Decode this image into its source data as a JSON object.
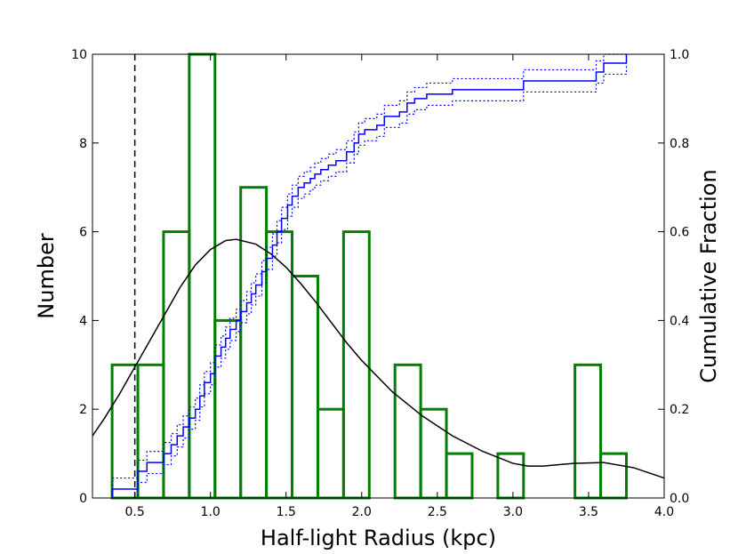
{
  "chart_data": {
    "type": "bar",
    "xlabel": "Half-light Radius (kpc)",
    "ylabel": "Number",
    "y2label": "Cumulative Fraction",
    "xlim": [
      0.22,
      4.0
    ],
    "ylim": [
      0,
      10
    ],
    "y2lim": [
      0.0,
      1.0
    ],
    "xticks": [
      "0.5",
      "1.0",
      "1.5",
      "2.0",
      "2.5",
      "3.0",
      "3.5",
      "4.0"
    ],
    "yticks": [
      "0",
      "2",
      "4",
      "6",
      "8",
      "10"
    ],
    "y2ticks": [
      "0.0",
      "0.2",
      "0.4",
      "0.6",
      "0.8",
      "1.0"
    ],
    "vline_x": 0.5,
    "histogram": {
      "bins": [
        {
          "x0": 0.35,
          "x1": 0.52,
          "count": 3
        },
        {
          "x0": 0.52,
          "x1": 0.69,
          "count": 3
        },
        {
          "x0": 0.69,
          "x1": 0.86,
          "count": 6
        },
        {
          "x0": 0.86,
          "x1": 1.03,
          "count": 10
        },
        {
          "x0": 1.03,
          "x1": 1.2,
          "count": 4
        },
        {
          "x0": 1.2,
          "x1": 1.37,
          "count": 7
        },
        {
          "x0": 1.37,
          "x1": 1.54,
          "count": 6
        },
        {
          "x0": 1.54,
          "x1": 1.71,
          "count": 5
        },
        {
          "x0": 1.71,
          "x1": 1.88,
          "count": 2
        },
        {
          "x0": 1.88,
          "x1": 2.05,
          "count": 6
        },
        {
          "x0": 2.05,
          "x1": 2.22,
          "count": 0
        },
        {
          "x0": 2.22,
          "x1": 2.39,
          "count": 3
        },
        {
          "x0": 2.39,
          "x1": 2.56,
          "count": 2
        },
        {
          "x0": 2.56,
          "x1": 2.73,
          "count": 1
        },
        {
          "x0": 2.73,
          "x1": 2.9,
          "count": 0
        },
        {
          "x0": 2.9,
          "x1": 3.07,
          "count": 1
        },
        {
          "x0": 3.07,
          "x1": 3.24,
          "count": 0
        },
        {
          "x0": 3.24,
          "x1": 3.41,
          "count": 0
        },
        {
          "x0": 3.41,
          "x1": 3.58,
          "count": 3
        },
        {
          "x0": 3.58,
          "x1": 3.75,
          "count": 1
        }
      ]
    },
    "cumulative": {
      "x": [
        0.35,
        0.52,
        0.58,
        0.69,
        0.74,
        0.78,
        0.82,
        0.86,
        0.9,
        0.93,
        0.96,
        1.0,
        1.03,
        1.07,
        1.1,
        1.13,
        1.17,
        1.2,
        1.24,
        1.27,
        1.3,
        1.34,
        1.37,
        1.41,
        1.44,
        1.47,
        1.51,
        1.54,
        1.58,
        1.62,
        1.66,
        1.69,
        1.73,
        1.78,
        1.83,
        1.9,
        1.95,
        1.98,
        2.02,
        2.1,
        2.15,
        2.25,
        2.3,
        2.35,
        2.43,
        2.6,
        3.07,
        3.55,
        3.6,
        3.75
      ],
      "y": [
        0.02,
        0.06,
        0.08,
        0.1,
        0.12,
        0.14,
        0.16,
        0.18,
        0.2,
        0.23,
        0.26,
        0.28,
        0.32,
        0.34,
        0.36,
        0.38,
        0.4,
        0.42,
        0.44,
        0.46,
        0.48,
        0.51,
        0.54,
        0.57,
        0.6,
        0.63,
        0.66,
        0.68,
        0.7,
        0.71,
        0.72,
        0.73,
        0.74,
        0.75,
        0.76,
        0.78,
        0.8,
        0.82,
        0.83,
        0.84,
        0.86,
        0.87,
        0.89,
        0.9,
        0.91,
        0.92,
        0.94,
        0.96,
        0.98,
        1.0
      ]
    },
    "cumulative_band_offset": 0.025,
    "fit_curve": {
      "x": [
        0.22,
        0.3,
        0.4,
        0.5,
        0.6,
        0.7,
        0.8,
        0.9,
        1.0,
        1.1,
        1.17,
        1.3,
        1.4,
        1.5,
        1.6,
        1.7,
        1.8,
        1.9,
        2.0,
        2.2,
        2.4,
        2.6,
        2.8,
        3.0,
        3.1,
        3.2,
        3.4,
        3.6,
        3.8,
        4.0
      ],
      "y": [
        1.4,
        1.8,
        2.35,
        2.95,
        3.55,
        4.15,
        4.75,
        5.25,
        5.6,
        5.8,
        5.83,
        5.72,
        5.5,
        5.2,
        4.82,
        4.4,
        3.95,
        3.5,
        3.1,
        2.4,
        1.85,
        1.4,
        1.05,
        0.78,
        0.72,
        0.72,
        0.78,
        0.8,
        0.68,
        0.45
      ]
    },
    "colors": {
      "histogram": "#008000",
      "cumulative": "#0000ff",
      "fit": "#000000",
      "vline": "#000000"
    },
    "grid": false
  }
}
